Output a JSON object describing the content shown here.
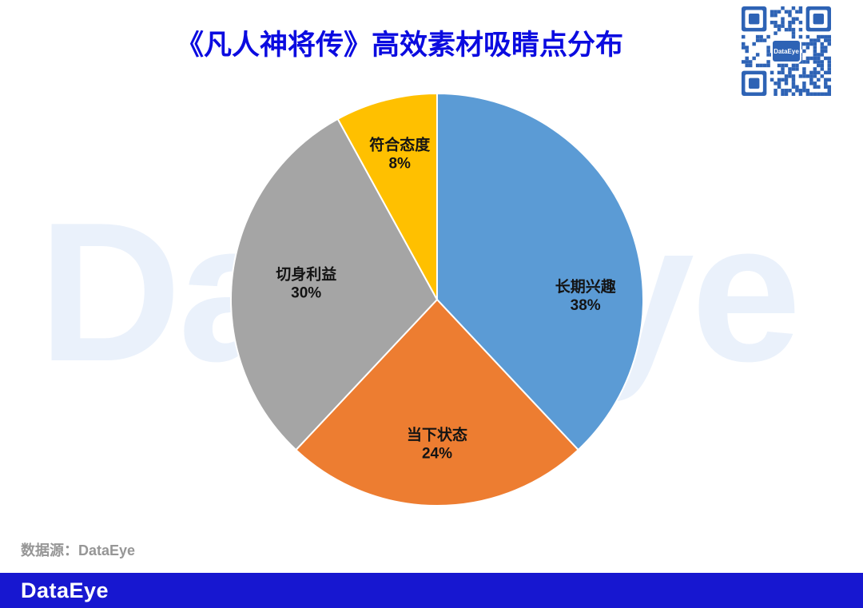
{
  "header": {
    "title": "《凡人神将传》高效素材吸睛点分布"
  },
  "qr": {
    "logo_text": "DataEye"
  },
  "watermark": {
    "text": "DataEye"
  },
  "source": {
    "note": "数据源：DataEye"
  },
  "footer": {
    "logo": "DataEye"
  },
  "colors": {
    "title": "#0b0be0",
    "footer_bg": "#1717d0",
    "qr_blue": "#2e63b5",
    "watermark": "#eaf1fb",
    "source_text": "#969696",
    "label_text": "#141414"
  },
  "chart_data": {
    "type": "pie",
    "title": "《凡人神将传》高效素材吸睛点分布",
    "start_angle_deg": 0,
    "direction": "clockwise",
    "slices": [
      {
        "label": "长期兴趣",
        "value": 38,
        "color": "#5B9BD5"
      },
      {
        "label": "当下状态",
        "value": 24,
        "color": "#ED7D31"
      },
      {
        "label": "切身利益",
        "value": 30,
        "color": "#A5A5A5"
      },
      {
        "label": "符合态度",
        "value": 8,
        "color": "#FFC000"
      }
    ],
    "value_suffix": "%",
    "legend": "none"
  }
}
